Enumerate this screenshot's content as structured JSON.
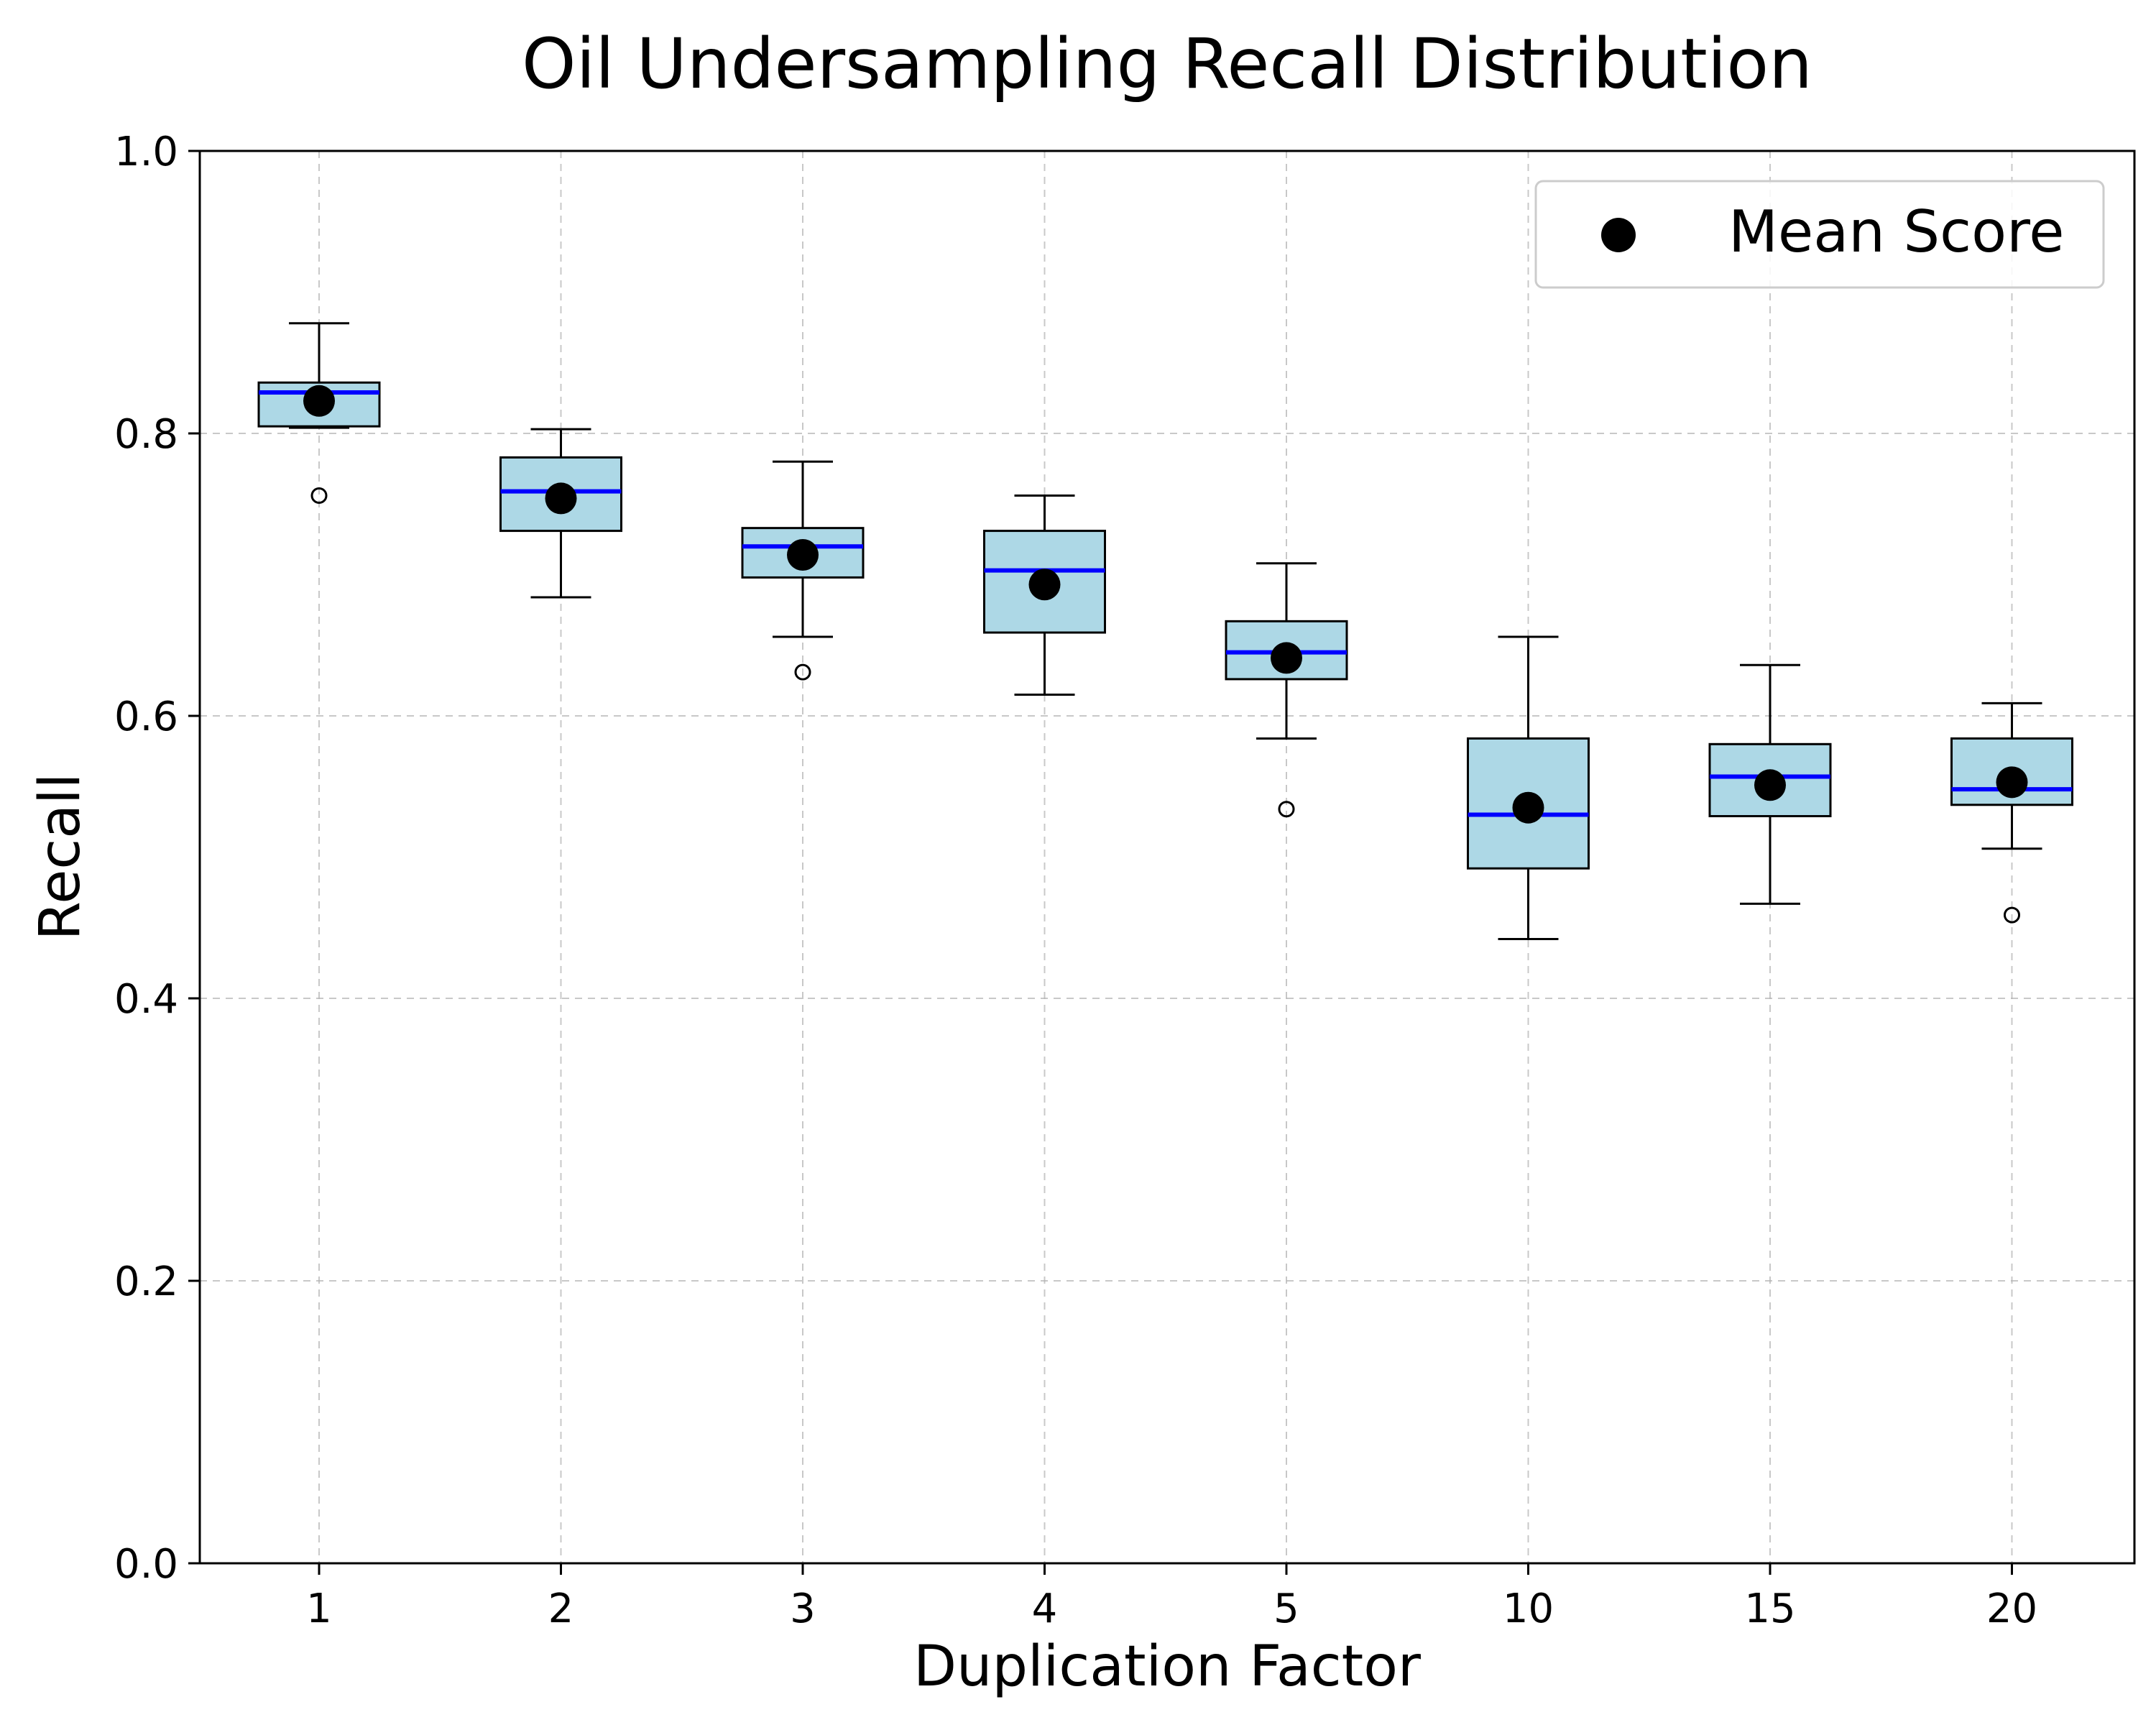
{
  "chart_data": {
    "type": "box",
    "title": "Oil Undersampling Recall Distribution",
    "xlabel": "Duplication Factor",
    "ylabel": "Recall",
    "ylim": [
      0.0,
      1.0
    ],
    "yticks": [
      "0.0",
      "0.2",
      "0.4",
      "0.6",
      "0.8",
      "1.0"
    ],
    "grid": true,
    "legend": {
      "position": "top-right",
      "entries": [
        "Mean Score"
      ]
    },
    "colors": {
      "box_fill": "#add8e6",
      "median": "#0000ff",
      "mean_marker": "#000000"
    },
    "categories": [
      "1",
      "2",
      "3",
      "4",
      "5",
      "10",
      "15",
      "20"
    ],
    "boxes": [
      {
        "category": "1",
        "whisker_low": 0.804,
        "q1": 0.805,
        "median": 0.829,
        "q3": 0.836,
        "whisker_high": 0.878,
        "mean": 0.823,
        "outliers": [
          0.756
        ]
      },
      {
        "category": "2",
        "whisker_low": 0.684,
        "q1": 0.731,
        "median": 0.759,
        "q3": 0.783,
        "whisker_high": 0.803,
        "mean": 0.754,
        "outliers": []
      },
      {
        "category": "3",
        "whisker_low": 0.656,
        "q1": 0.698,
        "median": 0.72,
        "q3": 0.733,
        "whisker_high": 0.78,
        "mean": 0.714,
        "outliers": [
          0.631
        ]
      },
      {
        "category": "4",
        "whisker_low": 0.615,
        "q1": 0.659,
        "median": 0.703,
        "q3": 0.731,
        "whisker_high": 0.756,
        "mean": 0.693,
        "outliers": []
      },
      {
        "category": "5",
        "whisker_low": 0.584,
        "q1": 0.626,
        "median": 0.645,
        "q3": 0.667,
        "whisker_high": 0.708,
        "mean": 0.641,
        "outliers": [
          0.534
        ]
      },
      {
        "category": "10",
        "whisker_low": 0.442,
        "q1": 0.492,
        "median": 0.53,
        "q3": 0.584,
        "whisker_high": 0.656,
        "mean": 0.535,
        "outliers": []
      },
      {
        "category": "15",
        "whisker_low": 0.467,
        "q1": 0.529,
        "median": 0.557,
        "q3": 0.58,
        "whisker_high": 0.636,
        "mean": 0.551,
        "outliers": []
      },
      {
        "category": "20",
        "whisker_low": 0.506,
        "q1": 0.537,
        "median": 0.548,
        "q3": 0.584,
        "whisker_high": 0.609,
        "mean": 0.553,
        "outliers": [
          0.459
        ]
      }
    ]
  }
}
